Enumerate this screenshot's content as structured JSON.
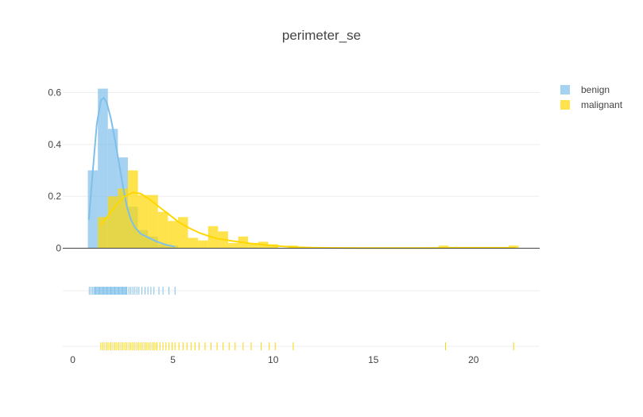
{
  "chart_data": {
    "type": "histogram",
    "title": "perimeter_se",
    "xlabel": "",
    "ylabel": "",
    "xlim": [
      -0.5,
      23.3
    ],
    "ylim": [
      0,
      0.63
    ],
    "x_ticks": [
      0,
      5,
      10,
      15,
      20
    ],
    "y_ticks": [
      0,
      0.2,
      0.4,
      0.6
    ],
    "y_tick_labels": [
      "0",
      "0.2",
      "0.4",
      "0.6"
    ],
    "bin_width": 0.5,
    "grid": true,
    "legend_position": "top-right",
    "series": [
      {
        "name": "benign",
        "color": "#7fbfea",
        "bins": [
          {
            "x0": 0.75,
            "x1": 1.25,
            "y": 0.3
          },
          {
            "x0": 1.25,
            "x1": 1.75,
            "y": 0.615
          },
          {
            "x0": 1.75,
            "x1": 2.25,
            "y": 0.46
          },
          {
            "x0": 2.25,
            "x1": 2.75,
            "y": 0.35
          },
          {
            "x0": 2.75,
            "x1": 3.25,
            "y": 0.16
          },
          {
            "x0": 3.25,
            "x1": 3.75,
            "y": 0.07
          },
          {
            "x0": 3.75,
            "x1": 4.25,
            "y": 0.045
          },
          {
            "x0": 4.25,
            "x1": 4.75,
            "y": 0.015
          },
          {
            "x0": 4.75,
            "x1": 5.25,
            "y": 0.01
          }
        ],
        "kde": [
          [
            0.8,
            0.11
          ],
          [
            1.0,
            0.3
          ],
          [
            1.2,
            0.48
          ],
          [
            1.4,
            0.57
          ],
          [
            1.55,
            0.58
          ],
          [
            1.7,
            0.56
          ],
          [
            1.9,
            0.5
          ],
          [
            2.1,
            0.42
          ],
          [
            2.3,
            0.33
          ],
          [
            2.5,
            0.24
          ],
          [
            2.7,
            0.16
          ],
          [
            2.9,
            0.11
          ],
          [
            3.1,
            0.08
          ],
          [
            3.4,
            0.055
          ],
          [
            3.8,
            0.04
          ],
          [
            4.2,
            0.025
          ],
          [
            4.7,
            0.012
          ],
          [
            5.1,
            0.006
          ]
        ],
        "rug": [
          0.82,
          0.9,
          0.98,
          1.05,
          1.1,
          1.15,
          1.2,
          1.25,
          1.3,
          1.35,
          1.4,
          1.45,
          1.5,
          1.55,
          1.6,
          1.65,
          1.7,
          1.75,
          1.8,
          1.85,
          1.9,
          1.95,
          2.0,
          2.05,
          2.1,
          2.15,
          2.2,
          2.25,
          2.3,
          2.35,
          2.4,
          2.45,
          2.5,
          2.55,
          2.6,
          2.65,
          2.7,
          2.8,
          2.9,
          3.0,
          3.1,
          3.2,
          3.3,
          3.45,
          3.6,
          3.75,
          3.9,
          4.05,
          4.3,
          4.5,
          4.8,
          5.1
        ]
      },
      {
        "name": "malignant",
        "color": "#ffd700",
        "bins": [
          {
            "x0": 1.25,
            "x1": 1.75,
            "y": 0.12
          },
          {
            "x0": 1.75,
            "x1": 2.25,
            "y": 0.2
          },
          {
            "x0": 2.25,
            "x1": 2.75,
            "y": 0.23
          },
          {
            "x0": 2.75,
            "x1": 3.25,
            "y": 0.3
          },
          {
            "x0": 3.25,
            "x1": 3.75,
            "y": 0.205
          },
          {
            "x0": 3.75,
            "x1": 4.25,
            "y": 0.205
          },
          {
            "x0": 4.25,
            "x1": 4.75,
            "y": 0.14
          },
          {
            "x0": 4.75,
            "x1": 5.25,
            "y": 0.105
          },
          {
            "x0": 5.25,
            "x1": 5.75,
            "y": 0.12
          },
          {
            "x0": 5.75,
            "x1": 6.25,
            "y": 0.04
          },
          {
            "x0": 6.25,
            "x1": 6.75,
            "y": 0.03
          },
          {
            "x0": 6.75,
            "x1": 7.25,
            "y": 0.085
          },
          {
            "x0": 7.25,
            "x1": 7.75,
            "y": 0.065
          },
          {
            "x0": 7.75,
            "x1": 8.25,
            "y": 0.02
          },
          {
            "x0": 8.25,
            "x1": 8.75,
            "y": 0.045
          },
          {
            "x0": 8.75,
            "x1": 9.25,
            "y": 0.02
          },
          {
            "x0": 9.25,
            "x1": 9.75,
            "y": 0.025
          },
          {
            "x0": 9.75,
            "x1": 10.25,
            "y": 0.015
          },
          {
            "x0": 10.75,
            "x1": 11.25,
            "y": 0.01
          },
          {
            "x0": 18.25,
            "x1": 18.75,
            "y": 0.01
          },
          {
            "x0": 18.75,
            "x1": 19.25,
            "y": 0.005
          },
          {
            "x0": 19.25,
            "x1": 19.75,
            "y": 0.005
          },
          {
            "x0": 19.75,
            "x1": 20.25,
            "y": 0.005
          },
          {
            "x0": 20.25,
            "x1": 20.75,
            "y": 0.005
          },
          {
            "x0": 20.75,
            "x1": 21.25,
            "y": 0.005
          },
          {
            "x0": 21.25,
            "x1": 21.75,
            "y": 0.005
          },
          {
            "x0": 21.75,
            "x1": 22.25,
            "y": 0.01
          }
        ],
        "kde": [
          [
            1.4,
            0.09
          ],
          [
            1.8,
            0.13
          ],
          [
            2.2,
            0.17
          ],
          [
            2.6,
            0.2
          ],
          [
            3.0,
            0.215
          ],
          [
            3.4,
            0.21
          ],
          [
            3.8,
            0.19
          ],
          [
            4.3,
            0.16
          ],
          [
            4.8,
            0.13
          ],
          [
            5.3,
            0.1
          ],
          [
            5.8,
            0.078
          ],
          [
            6.3,
            0.06
          ],
          [
            6.8,
            0.046
          ],
          [
            7.3,
            0.036
          ],
          [
            7.8,
            0.03
          ],
          [
            8.3,
            0.024
          ],
          [
            8.8,
            0.019
          ],
          [
            9.3,
            0.015
          ],
          [
            9.8,
            0.011
          ],
          [
            10.5,
            0.007
          ],
          [
            11.2,
            0.004
          ],
          [
            12.0,
            0.002
          ],
          [
            13.0,
            0.001
          ],
          [
            14.5,
            0.0006
          ],
          [
            16.0,
            0.0006
          ],
          [
            17.5,
            0.0008
          ],
          [
            18.6,
            0.001
          ],
          [
            20.0,
            0.001
          ],
          [
            21.0,
            0.001
          ],
          [
            22.1,
            0.001
          ]
        ],
        "rug": [
          1.4,
          1.5,
          1.6,
          1.7,
          1.8,
          1.9,
          2.0,
          2.1,
          2.2,
          2.3,
          2.4,
          2.5,
          2.6,
          2.7,
          2.8,
          2.9,
          3.0,
          3.1,
          3.2,
          3.3,
          3.4,
          3.5,
          3.6,
          3.7,
          3.8,
          3.9,
          4.0,
          4.1,
          4.2,
          4.35,
          4.5,
          4.65,
          4.8,
          4.95,
          5.1,
          5.3,
          5.5,
          5.7,
          5.9,
          6.1,
          6.3,
          6.6,
          6.9,
          7.2,
          7.5,
          7.8,
          8.1,
          8.5,
          8.9,
          9.4,
          9.8,
          10.1,
          11.0,
          18.6,
          22.0
        ]
      }
    ]
  }
}
